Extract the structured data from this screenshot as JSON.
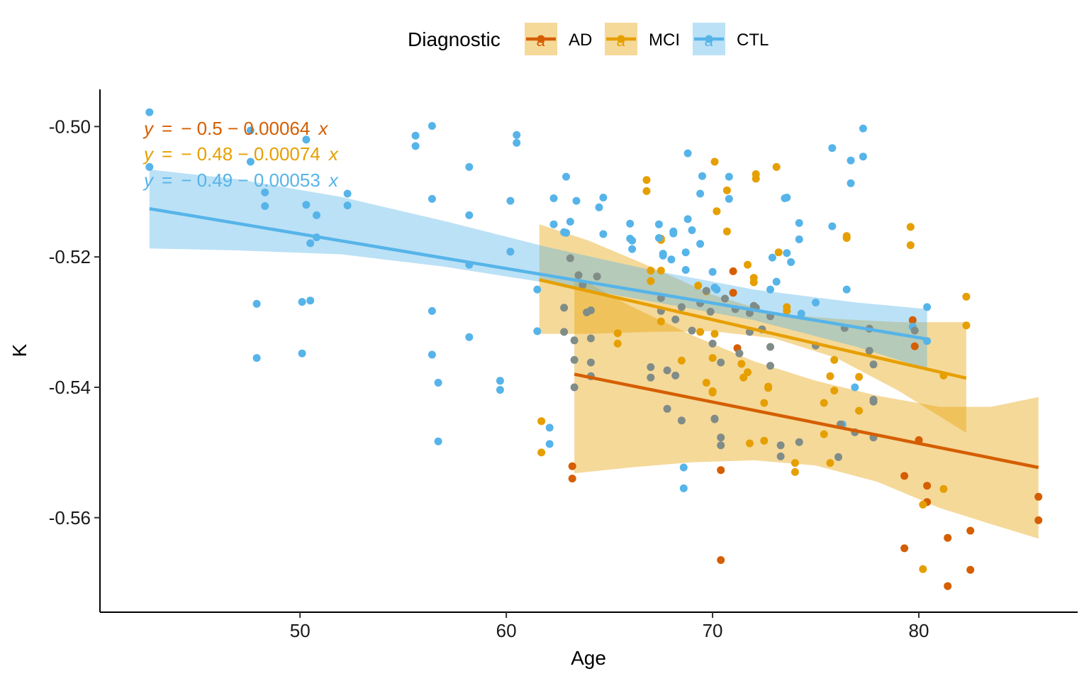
{
  "chart_data": {
    "type": "scatter",
    "xlabel": "Age",
    "ylabel": "K",
    "xlim": [
      40.3,
      87.7
    ],
    "ylim": [
      -0.5745,
      -0.4943
    ],
    "x_ticks": [
      50,
      60,
      70,
      80
    ],
    "y_ticks": [
      -0.56,
      -0.54,
      -0.52,
      -0.5
    ],
    "y_tick_labels": [
      "-0.56",
      "-0.54",
      "-0.52",
      "-0.50"
    ],
    "grid": false,
    "legend": {
      "title": "Diagnostic",
      "position": "top",
      "key_glyph": "a"
    },
    "series": [
      {
        "name": "AD",
        "color": "#D55E00",
        "band_color": "#E69F00",
        "equation": {
          "y": "y",
          "eq": "=",
          "rhs": "− 0.5 − 0.00064",
          "x": "x"
        },
        "fit": {
          "x": [
            63.3,
            85.8
          ],
          "y": [
            -0.538,
            -0.5523
          ]
        },
        "band": {
          "x": [
            63.3,
            66,
            69,
            72,
            75,
            78,
            81,
            83.5,
            85.8
          ],
          "lower": [
            -0.5532,
            -0.5523,
            -0.5515,
            -0.5512,
            -0.552,
            -0.5545,
            -0.5585,
            -0.561,
            -0.5632
          ],
          "upper": [
            -0.5228,
            -0.5275,
            -0.532,
            -0.536,
            -0.539,
            -0.5413,
            -0.543,
            -0.543,
            -0.5415
          ]
        },
        "points": [
          [
            63.2,
            -0.5521
          ],
          [
            63.2,
            -0.554
          ],
          [
            70.4,
            -0.5527
          ],
          [
            70.4,
            -0.5665
          ],
          [
            71.0,
            -0.5222
          ],
          [
            71.0,
            -0.5255
          ],
          [
            71.2,
            -0.534
          ],
          [
            79.3,
            -0.5536
          ],
          [
            79.3,
            -0.5647
          ],
          [
            79.7,
            -0.5297
          ],
          [
            79.8,
            -0.5337
          ],
          [
            80.4,
            -0.5551
          ],
          [
            80.4,
            -0.5576
          ],
          [
            80.0,
            -0.5481
          ],
          [
            81.4,
            -0.5631
          ],
          [
            81.4,
            -0.5705
          ],
          [
            82.5,
            -0.562
          ],
          [
            82.5,
            -0.568
          ],
          [
            85.8,
            -0.5568
          ],
          [
            85.8,
            -0.5604
          ]
        ]
      },
      {
        "name": "MCI",
        "color": "#E69F00",
        "band_color": "#E69F00",
        "equation": {
          "y": "y",
          "eq": "=",
          "rhs": "− 0.48 − 0.00074",
          "x": "x"
        },
        "fit": {
          "x": [
            61.6,
            82.3
          ],
          "y": [
            -0.5235,
            -0.5386
          ]
        },
        "band": {
          "x": [
            61.6,
            64,
            67,
            70,
            73,
            76,
            79,
            82.3
          ],
          "lower": [
            -0.5318,
            -0.5318,
            -0.5315,
            -0.5314,
            -0.5325,
            -0.5355,
            -0.5405,
            -0.547
          ],
          "upper": [
            -0.515,
            -0.5175,
            -0.5215,
            -0.5258,
            -0.5287,
            -0.5295,
            -0.53,
            -0.53
          ]
        },
        "points": [
          [
            61.7,
            -0.5452
          ],
          [
            61.7,
            -0.55
          ],
          [
            65.4,
            -0.5317
          ],
          [
            65.4,
            -0.5333
          ],
          [
            66.8,
            -0.5082
          ],
          [
            66.8,
            -0.5099
          ],
          [
            67.0,
            -0.5221
          ],
          [
            67.0,
            -0.5237
          ],
          [
            67.5,
            -0.5221
          ],
          [
            67.5,
            -0.5299
          ],
          [
            67.5,
            -0.5172
          ],
          [
            67.5,
            -0.5174
          ],
          [
            68.5,
            -0.5359
          ],
          [
            69.3,
            -0.5244
          ],
          [
            69.4,
            -0.5315
          ],
          [
            69.7,
            -0.5393
          ],
          [
            69.7,
            -0.5253
          ],
          [
            70.0,
            -0.5355
          ],
          [
            70.0,
            -0.5406
          ],
          [
            70.0,
            -0.5408
          ],
          [
            70.1,
            -0.5318
          ],
          [
            70.1,
            -0.5054
          ],
          [
            70.2,
            -0.513
          ],
          [
            70.7,
            -0.5161
          ],
          [
            70.7,
            -0.5098
          ],
          [
            71.4,
            -0.5364
          ],
          [
            71.5,
            -0.5385
          ],
          [
            71.7,
            -0.5377
          ],
          [
            71.7,
            -0.5212
          ],
          [
            71.8,
            -0.5486
          ],
          [
            72.0,
            -0.5232
          ],
          [
            72.0,
            -0.5239
          ],
          [
            72.1,
            -0.5073
          ],
          [
            72.1,
            -0.508
          ],
          [
            72.5,
            -0.5424
          ],
          [
            72.5,
            -0.5482
          ],
          [
            72.7,
            -0.5399
          ],
          [
            72.7,
            -0.5401
          ],
          [
            73.1,
            -0.5062
          ],
          [
            73.2,
            -0.5193
          ],
          [
            73.6,
            -0.5277
          ],
          [
            73.6,
            -0.5283
          ],
          [
            74.0,
            -0.5516
          ],
          [
            74.0,
            -0.553
          ],
          [
            75.4,
            -0.5424
          ],
          [
            75.4,
            -0.5472
          ],
          [
            75.7,
            -0.5383
          ],
          [
            75.7,
            -0.5516
          ],
          [
            75.9,
            -0.5358
          ],
          [
            75.9,
            -0.5405
          ],
          [
            76.5,
            -0.5168
          ],
          [
            76.5,
            -0.5171
          ],
          [
            77.1,
            -0.5384
          ],
          [
            77.1,
            -0.5436
          ],
          [
            79.6,
            -0.5154
          ],
          [
            79.6,
            -0.5182
          ],
          [
            79.7,
            -0.5307
          ],
          [
            80.2,
            -0.558
          ],
          [
            80.2,
            -0.5679
          ],
          [
            81.2,
            -0.5382
          ],
          [
            81.2,
            -0.5556
          ],
          [
            82.3,
            -0.5261
          ],
          [
            82.3,
            -0.5305
          ]
        ]
      },
      {
        "name": "CTL",
        "color": "#56B4E9",
        "band_color": "#56B4E9",
        "equation": {
          "y": "y",
          "eq": "=",
          "rhs": "− 0.49 − 0.00053",
          "x": "x"
        },
        "fit": {
          "x": [
            42.7,
            80.4
          ],
          "y": [
            -0.5126,
            -0.5326
          ]
        },
        "band": {
          "x": [
            42.7,
            47,
            52,
            57,
            62,
            67,
            72,
            77,
            80.4
          ],
          "lower": [
            -0.5187,
            -0.519,
            -0.5196,
            -0.5215,
            -0.524,
            -0.5268,
            -0.5297,
            -0.5338,
            -0.5372
          ],
          "upper": [
            -0.5066,
            -0.5081,
            -0.5108,
            -0.5145,
            -0.5185,
            -0.522,
            -0.525,
            -0.527,
            -0.528
          ]
        },
        "points": [
          [
            42.7,
            -0.4978
          ],
          [
            42.7,
            -0.5062
          ],
          [
            47.6,
            -0.5006
          ],
          [
            47.6,
            -0.5054
          ],
          [
            47.9,
            -0.5272
          ],
          [
            47.9,
            -0.5355
          ],
          [
            48.3,
            -0.5101
          ],
          [
            48.3,
            -0.5122
          ],
          [
            50.1,
            -0.5269
          ],
          [
            50.1,
            -0.5348
          ],
          [
            50.3,
            -0.502
          ],
          [
            50.3,
            -0.512
          ],
          [
            50.5,
            -0.5179
          ],
          [
            50.5,
            -0.5267
          ],
          [
            50.8,
            -0.5136
          ],
          [
            50.8,
            -0.517
          ],
          [
            52.3,
            -0.5103
          ],
          [
            52.3,
            -0.5121
          ],
          [
            55.6,
            -0.5014
          ],
          [
            55.6,
            -0.503
          ],
          [
            56.4,
            -0.4999
          ],
          [
            56.4,
            -0.5111
          ],
          [
            56.4,
            -0.5283
          ],
          [
            56.4,
            -0.535
          ],
          [
            56.7,
            -0.5393
          ],
          [
            56.7,
            -0.5483
          ],
          [
            58.2,
            -0.5062
          ],
          [
            58.2,
            -0.5136
          ],
          [
            58.2,
            -0.5212
          ],
          [
            58.2,
            -0.5323
          ],
          [
            59.7,
            -0.539
          ],
          [
            59.7,
            -0.5404
          ],
          [
            60.2,
            -0.5114
          ],
          [
            60.2,
            -0.5192
          ],
          [
            60.5,
            -0.5013
          ],
          [
            60.5,
            -0.5025
          ],
          [
            61.5,
            -0.525
          ],
          [
            61.5,
            -0.5314
          ],
          [
            62.1,
            -0.5462
          ],
          [
            62.1,
            -0.5487
          ],
          [
            62.3,
            -0.511
          ],
          [
            62.3,
            -0.515
          ],
          [
            62.8,
            -0.5162
          ],
          [
            62.9,
            -0.5077
          ],
          [
            62.9,
            -0.5163
          ],
          [
            63.1,
            -0.5146
          ],
          [
            63.4,
            -0.5114
          ],
          [
            64.5,
            -0.5124
          ],
          [
            64.7,
            -0.5109
          ],
          [
            64.7,
            -0.5165
          ],
          [
            66.0,
            -0.5149
          ],
          [
            66.0,
            -0.5172
          ],
          [
            66.1,
            -0.5175
          ],
          [
            66.1,
            -0.5188
          ],
          [
            67.4,
            -0.515
          ],
          [
            67.4,
            -0.5171
          ],
          [
            67.6,
            -0.5195
          ],
          [
            67.6,
            -0.5198
          ],
          [
            68.0,
            -0.5204
          ],
          [
            68.1,
            -0.5161
          ],
          [
            68.1,
            -0.5164
          ],
          [
            68.6,
            -0.5523
          ],
          [
            68.6,
            -0.5555
          ],
          [
            68.7,
            -0.5193
          ],
          [
            68.7,
            -0.522
          ],
          [
            68.8,
            -0.5142
          ],
          [
            68.8,
            -0.5041
          ],
          [
            69.0,
            -0.5159
          ],
          [
            69.4,
            -0.5103
          ],
          [
            69.4,
            -0.518
          ],
          [
            69.5,
            -0.5076
          ],
          [
            70.0,
            -0.5223
          ],
          [
            70.1,
            -0.5247
          ],
          [
            70.2,
            -0.525
          ],
          [
            70.8,
            -0.5077
          ],
          [
            70.8,
            -0.5111
          ],
          [
            72.8,
            -0.525
          ],
          [
            72.9,
            -0.5201
          ],
          [
            73.1,
            -0.5238
          ],
          [
            73.5,
            -0.511
          ],
          [
            73.6,
            -0.5109
          ],
          [
            73.6,
            -0.5194
          ],
          [
            73.8,
            -0.5208
          ],
          [
            74.2,
            -0.5148
          ],
          [
            74.2,
            -0.5173
          ],
          [
            74.3,
            -0.5287
          ],
          [
            75.0,
            -0.527
          ],
          [
            75.8,
            -0.5033
          ],
          [
            75.8,
            -0.5153
          ],
          [
            76.5,
            -0.525
          ],
          [
            76.7,
            -0.5052
          ],
          [
            76.7,
            -0.5087
          ],
          [
            77.3,
            -0.5003
          ],
          [
            77.3,
            -0.5046
          ],
          [
            79.7,
            -0.5307
          ],
          [
            80.4,
            -0.5277
          ],
          [
            80.4,
            -0.5329
          ],
          [
            76.9,
            -0.54
          ],
          [
            76.3,
            -0.5457
          ]
        ]
      }
    ],
    "overlap_points": [
      [
        63.1,
        -0.5202
      ],
      [
        62.8,
        -0.5278
      ],
      [
        62.8,
        -0.5315
      ],
      [
        63.3,
        -0.5328
      ],
      [
        63.3,
        -0.5358
      ],
      [
        63.3,
        -0.54
      ],
      [
        63.5,
        -0.5228
      ],
      [
        63.7,
        -0.5243
      ],
      [
        63.9,
        -0.5285
      ],
      [
        64.1,
        -0.5282
      ],
      [
        64.1,
        -0.5325
      ],
      [
        64.1,
        -0.5362
      ],
      [
        64.1,
        -0.5383
      ],
      [
        64.4,
        -0.523
      ],
      [
        67.0,
        -0.5369
      ],
      [
        67.0,
        -0.5385
      ],
      [
        67.5,
        -0.5263
      ],
      [
        67.5,
        -0.5283
      ],
      [
        67.8,
        -0.5374
      ],
      [
        67.8,
        -0.5433
      ],
      [
        68.2,
        -0.5296
      ],
      [
        68.2,
        -0.5382
      ],
      [
        68.5,
        -0.5451
      ],
      [
        68.5,
        -0.5277
      ],
      [
        69.0,
        -0.5313
      ],
      [
        69.4,
        -0.5271
      ],
      [
        69.7,
        -0.5252
      ],
      [
        69.9,
        -0.5284
      ],
      [
        70.0,
        -0.5333
      ],
      [
        70.1,
        -0.5448
      ],
      [
        70.1,
        -0.5449
      ],
      [
        70.4,
        -0.5362
      ],
      [
        70.4,
        -0.5477
      ],
      [
        70.4,
        -0.5489
      ],
      [
        70.6,
        -0.5264
      ],
      [
        71.1,
        -0.528
      ],
      [
        71.3,
        -0.5348
      ],
      [
        71.8,
        -0.5286
      ],
      [
        71.8,
        -0.5315
      ],
      [
        72.0,
        -0.5275
      ],
      [
        72.1,
        -0.5278
      ],
      [
        72.4,
        -0.5311
      ],
      [
        72.8,
        -0.5291
      ],
      [
        72.8,
        -0.5338
      ],
      [
        72.8,
        -0.5367
      ],
      [
        73.3,
        -0.5489
      ],
      [
        73.3,
        -0.5506
      ],
      [
        74.2,
        -0.5484
      ],
      [
        75.0,
        -0.5336
      ],
      [
        76.1,
        -0.5507
      ],
      [
        76.2,
        -0.5457
      ],
      [
        76.4,
        -0.5309
      ],
      [
        76.9,
        -0.5469
      ],
      [
        77.6,
        -0.531
      ],
      [
        77.6,
        -0.5344
      ],
      [
        77.8,
        -0.5365
      ],
      [
        77.8,
        -0.5419
      ],
      [
        77.8,
        -0.5422
      ],
      [
        77.8,
        -0.5477
      ],
      [
        79.8,
        -0.5313
      ]
    ]
  }
}
